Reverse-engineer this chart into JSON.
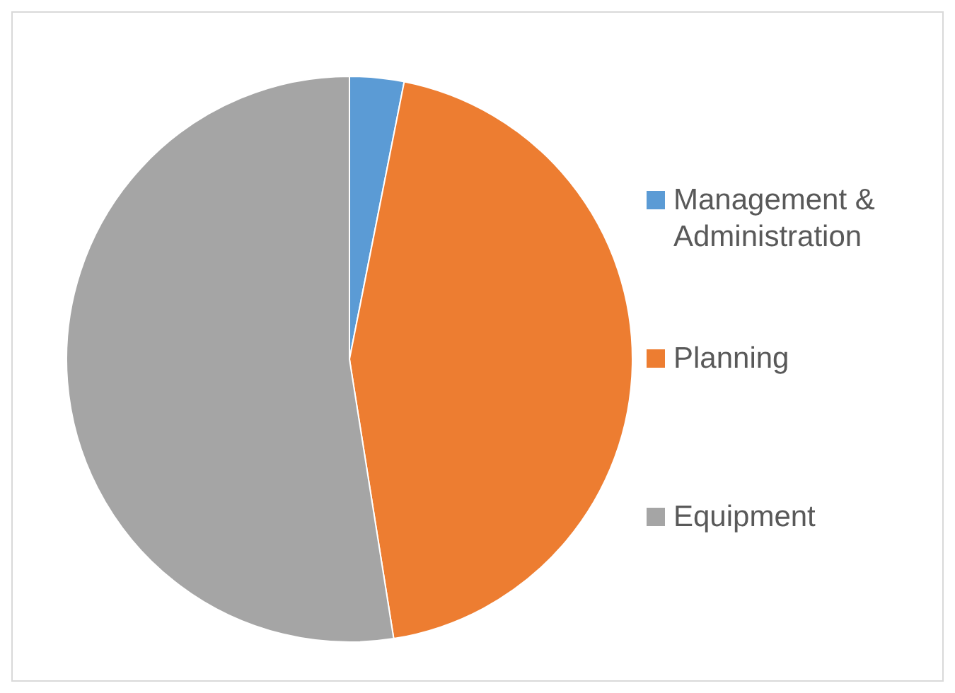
{
  "chart_data": {
    "type": "pie",
    "categories": [
      "Management & Administration",
      "Planning",
      "Equipment"
    ],
    "values": [
      3.1,
      44.4,
      52.5
    ],
    "colors": [
      "#5b9bd5",
      "#ed7d31",
      "#a5a5a5"
    ],
    "legend": "right"
  }
}
